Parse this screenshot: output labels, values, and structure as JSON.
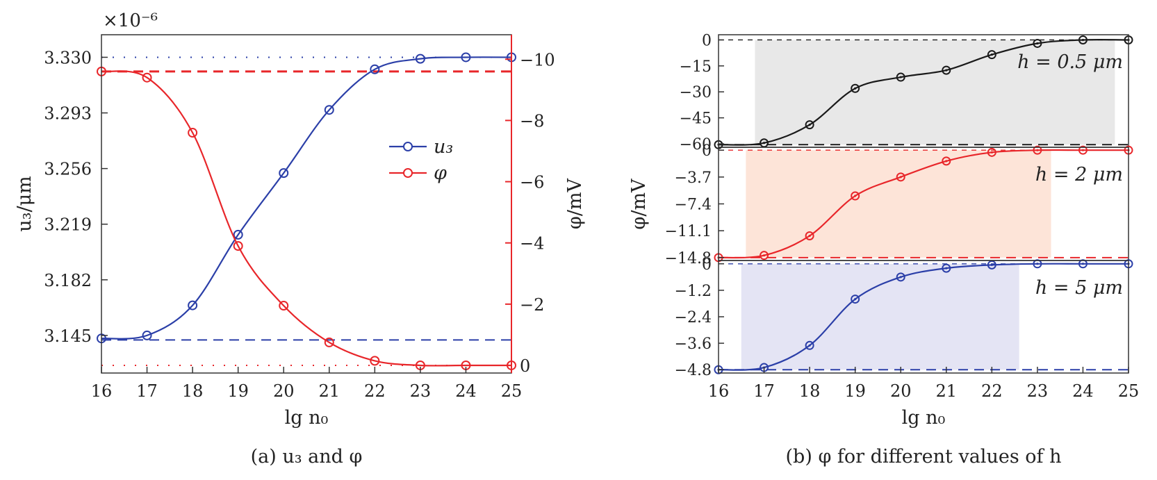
{
  "chart_data": [
    {
      "id": "a",
      "type": "line",
      "caption": "(a) u₃ and φ",
      "xlabel": "lg n₀",
      "ylabel_left": "u₃/μm",
      "ylabel_right": "φ/mV",
      "left_multiplier": "×10⁻⁶",
      "x_ticks": [
        16,
        17,
        18,
        19,
        20,
        21,
        22,
        23,
        24,
        25
      ],
      "xlim": [
        16,
        25
      ],
      "left_ticks": [
        "3.145",
        "3.182",
        "3.219",
        "3.256",
        "3.293",
        "3.330"
      ],
      "left_ylim": [
        3.12,
        3.345
      ],
      "right_ticks": [
        "0",
        "−2",
        "−4",
        "−6",
        "−8",
        "−10"
      ],
      "right_ylim": [
        0.25,
        -10.8
      ],
      "legend_position": "center-right",
      "series": [
        {
          "name": "u₃",
          "axis": "left",
          "color": "#2b3fa8",
          "x": [
            16,
            17,
            18,
            19,
            20,
            21,
            22,
            23,
            24,
            25
          ],
          "values": [
            3.143,
            3.145,
            3.165,
            3.212,
            3.253,
            3.295,
            3.322,
            3.329,
            3.33,
            3.33
          ],
          "asymptotes": [
            3.142,
            3.33
          ]
        },
        {
          "name": "φ",
          "axis": "right",
          "color": "#e8262a",
          "x": [
            16,
            17,
            18,
            19,
            20,
            21,
            22,
            23,
            24,
            25
          ],
          "values": [
            -9.6,
            -9.4,
            -7.6,
            -3.9,
            -1.95,
            -0.75,
            -0.15,
            0.0,
            0.0,
            0.0
          ],
          "asymptotes": [
            -9.6,
            0.0
          ]
        }
      ]
    },
    {
      "id": "b",
      "type": "line",
      "caption": "(b) φ for different values of h",
      "xlabel": "lg n₀",
      "ylabel": "φ/mV",
      "x_ticks": [
        16,
        17,
        18,
        19,
        20,
        21,
        22,
        23,
        24,
        25
      ],
      "xlim": [
        16,
        25
      ],
      "panels": [
        {
          "label": "h = 0.5 μm",
          "color": "#1a1a1a",
          "shade": "#e8e8e8",
          "shade_x": [
            16.8,
            24.7
          ],
          "ticks": [
            "0",
            "−15",
            "−30",
            "−45",
            "−60"
          ],
          "ylim": [
            -62,
            3
          ],
          "x": [
            16,
            17,
            18,
            19,
            20,
            21,
            22,
            23,
            24,
            25
          ],
          "values": [
            -60.5,
            -59.5,
            -49.0,
            -28.0,
            -21.5,
            -17.5,
            -8.5,
            -2.0,
            0.0,
            0.0
          ],
          "asymptotes": [
            -60.5,
            0.0
          ]
        },
        {
          "label": "h = 2 μm",
          "color": "#e8262a",
          "shade": "#fde4d8",
          "shade_x": [
            16.6,
            23.3
          ],
          "ticks": [
            "0",
            "−3.7",
            "−7.4",
            "−11.1",
            "−14.8"
          ],
          "ylim": [
            -15.2,
            0.4
          ],
          "x": [
            16,
            17,
            18,
            19,
            20,
            21,
            22,
            23,
            24,
            25
          ],
          "values": [
            -14.8,
            -14.5,
            -11.8,
            -6.3,
            -3.7,
            -1.5,
            -0.3,
            0.0,
            0.0,
            0.0
          ],
          "asymptotes": [
            -14.8,
            0.0
          ]
        },
        {
          "label": "h = 5 μm",
          "color": "#2b3fa8",
          "shade": "#e4e4f4",
          "shade_x": [
            16.5,
            22.6
          ],
          "ticks": [
            "0",
            "−1.2",
            "−2.4",
            "−3.6",
            "−4.8"
          ],
          "ylim": [
            -4.95,
            0.15
          ],
          "x": [
            16,
            17,
            18,
            19,
            20,
            21,
            22,
            23,
            24,
            25
          ],
          "values": [
            -4.8,
            -4.7,
            -3.7,
            -1.6,
            -0.6,
            -0.2,
            -0.05,
            0.0,
            0.0,
            0.0
          ],
          "asymptotes": [
            -4.8,
            0.0
          ]
        }
      ]
    }
  ]
}
